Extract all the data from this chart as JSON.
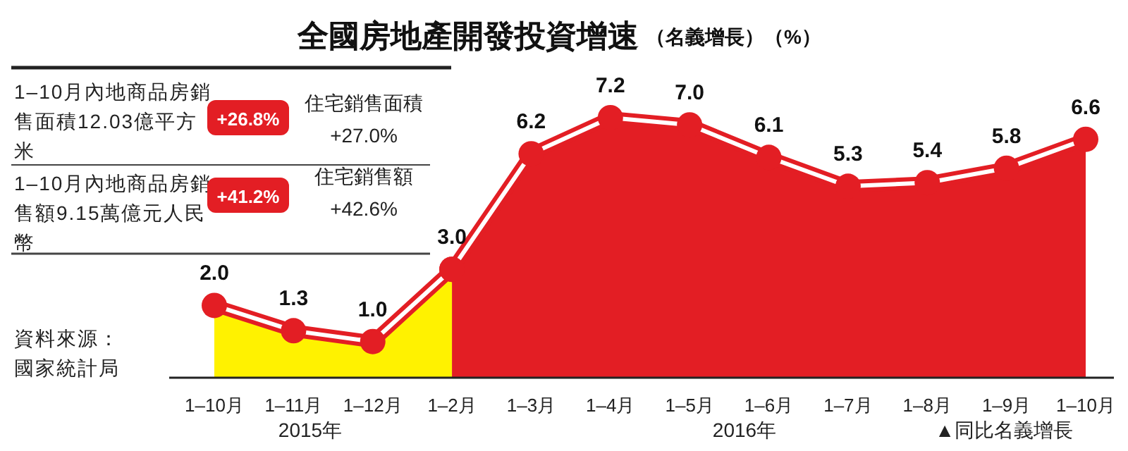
{
  "chart_data": {
    "type": "area",
    "title": "全國房地產開發投資增速",
    "subtitle": "（名義增長）（%）",
    "categories": [
      "1–10月",
      "1–11月",
      "1–12月",
      "1–2月",
      "1–3月",
      "1–4月",
      "1–5月",
      "1–6月",
      "1–7月",
      "1–8月",
      "1–9月",
      "1–10月"
    ],
    "series": [
      {
        "color": "#fff200",
        "values": [
          2.0,
          1.3,
          1.0,
          3.0,
          null,
          null,
          null,
          null,
          null,
          null,
          null,
          null
        ],
        "value_labels": [
          "2.0",
          "1.3",
          "1.0",
          "3.0",
          null,
          null,
          null,
          null,
          null,
          null,
          null,
          null
        ]
      },
      {
        "color": "#e31e24",
        "values": [
          null,
          null,
          null,
          3.0,
          6.2,
          7.2,
          7.0,
          6.1,
          5.3,
          5.4,
          5.8,
          6.6
        ],
        "value_labels": [
          null,
          null,
          null,
          null,
          "6.2",
          "7.2",
          "7.0",
          "6.1",
          "5.3",
          "5.4",
          "5.8",
          "6.6"
        ]
      }
    ],
    "marker": "circle",
    "annotations": [
      "1–10月內地商品房銷售面積12.03億平方米",
      "+26.8%",
      "住宅銷售面積",
      "+27.0%",
      "1–10月內地商品房銷售額9.15萬億元人民幣",
      "+41.2%",
      "住宅銷售額",
      "+42.6%",
      "資料來源：國家統計局",
      "2015年",
      "2016年",
      "▲同比名義增長"
    ]
  }
}
